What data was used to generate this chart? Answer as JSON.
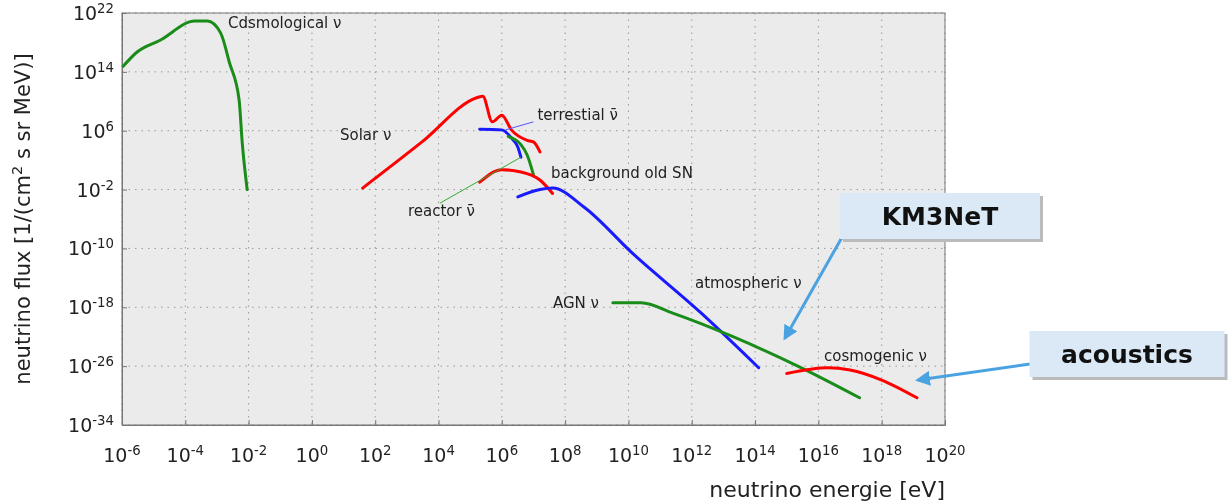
{
  "chart_data": {
    "type": "line",
    "log": "xy",
    "grid": true,
    "xlabel": "neutrino energie [eV]",
    "ylabel": "neutrino flux [1/(cm$^{2}$ s sr MeV)]",
    "xlim": [
      1e-06,
      1e+20
    ],
    "ylim": [
      1e-34,
      1e+22
    ],
    "xticks": [
      {
        "value": 1e-06,
        "label": "10$^{-6}$"
      },
      {
        "value": 0.0001,
        "label": "10$^{-4}$"
      },
      {
        "value": 0.01,
        "label": "10$^{-2}$"
      },
      {
        "value": 1,
        "label": "10$^{0}$"
      },
      {
        "value": 100.0,
        "label": "10$^{2}$"
      },
      {
        "value": 10000.0,
        "label": "10$^{4}$"
      },
      {
        "value": 1000000.0,
        "label": "10$^{6}$"
      },
      {
        "value": 100000000.0,
        "label": "10$^{8}$"
      },
      {
        "value": 10000000000.0,
        "label": "10$^{10}$"
      },
      {
        "value": 1000000000000.0,
        "label": "10$^{12}$"
      },
      {
        "value": 100000000000000.0,
        "label": "10$^{14}$"
      },
      {
        "value": 1e+16,
        "label": "10$^{16}$"
      },
      {
        "value": 1e+18,
        "label": "10$^{18}$"
      },
      {
        "value": 1e+20,
        "label": "10$^{20}$"
      }
    ],
    "yticks": [
      {
        "value": 1e-34,
        "label": "10$^{-34}$"
      },
      {
        "value": 1e-26,
        "label": "10$^{-26}$"
      },
      {
        "value": 1e-18,
        "label": "10$^{-18}$"
      },
      {
        "value": 1e-10,
        "label": "10$^{-10}$"
      },
      {
        "value": 0.01,
        "label": "10$^{-2}$"
      },
      {
        "value": 1000000.0,
        "label": "10$^{6}$"
      },
      {
        "value": 100000000000000.0,
        "label": "10$^{14}$"
      },
      {
        "value": 1e+22,
        "label": "10$^{22}$"
      }
    ],
    "series": [
      {
        "color": "#1a8c1a",
        "x": [
          1.1e-06,
          3e-06,
          1.6e-05,
          0.0002,
          0.0005,
          0.0013,
          0.0025,
          0.005,
          0.0063,
          0.009
        ],
        "values": [
          600000000000000.0,
          5e+16,
          2e+18,
          8e+20,
          8e+20,
          2e+19,
          1600000000000000.0,
          16000000000.0,
          20000.0,
          0.01
        ]
      },
      {
        "color": "#ff0000",
        "x": [
          40,
          3000.0,
          160000.0,
          250000.0,
          500000.0,
          1000000.0,
          2000000.0,
          6300000.0,
          10000000.0,
          16000000.0
        ],
        "values": [
          0.016,
          30000.0,
          30000000000.0,
          50000000000.0,
          16000000.0,
          130000000.0,
          1300000.0,
          50000.0,
          30000.0,
          1300.0
        ]
      },
      {
        "color": "#1a1aff",
        "x": [
          200000.0,
          1000000.0,
          2000000.0,
          3200000.0,
          4000000.0
        ],
        "values": [
          1600000.0,
          1300000.0,
          100000.0,
          6000.0,
          250.0
        ]
      },
      {
        "color": "#1a8c1a",
        "x": [
          1600000.0,
          4000000.0,
          6300000.0,
          10000000.0
        ],
        "values": [
          160000.0,
          13000.0,
          500.0,
          1
        ]
      },
      {
        "color": "#ff0000",
        "x": [
          200000.0,
          1000000.0,
          4000000.0,
          16000000.0,
          40000000.0
        ],
        "values": [
          0.1,
          5,
          2.5,
          0.2,
          0.003
        ]
      },
      {
        "color": "#1a1aff",
        "x": [
          3200000.0,
          16000000.0,
          40000000.0,
          400000000.0,
          13000000000.0,
          2000000000000.0,
          130000000000000.0
        ],
        "values": [
          0.001,
          0.01,
          0.016,
          4e-05,
          2.5e-11,
          1.6e-19,
          6e-27
        ]
      },
      {
        "color": "#1a8c1a",
        "x": [
          3200000000.0,
          25000000000.0,
          250000000000.0,
          20000000000000.0,
          2500000000000000.0,
          2e+17
        ],
        "values": [
          4e-18,
          4e-18,
          1.6e-19,
          1e-22,
          8e-27,
          5e-31
        ]
      },
      {
        "color": "#ff0000",
        "x": [
          1000000000000000.0,
          2e+16,
          1e+17,
          1e+18,
          1.3e+19
        ],
        "values": [
          1e-27,
          6e-27,
          3e-27,
          1.3e-28,
          5e-31
        ]
      }
    ],
    "annotations": [
      "Cdsmological ν",
      "Solar ν",
      {
        "text": "terrestial ν̄",
        "x": 1300000.0,
        "y": 1300000.0
      },
      {
        "text": "reactor ν̄",
        "x": 4000000.0,
        "y": 250.0
      },
      "background old SN",
      "atmospheric ν",
      "AGN ν",
      "cosmogenic ν",
      "KM3NeT",
      "acoustics"
    ]
  }
}
